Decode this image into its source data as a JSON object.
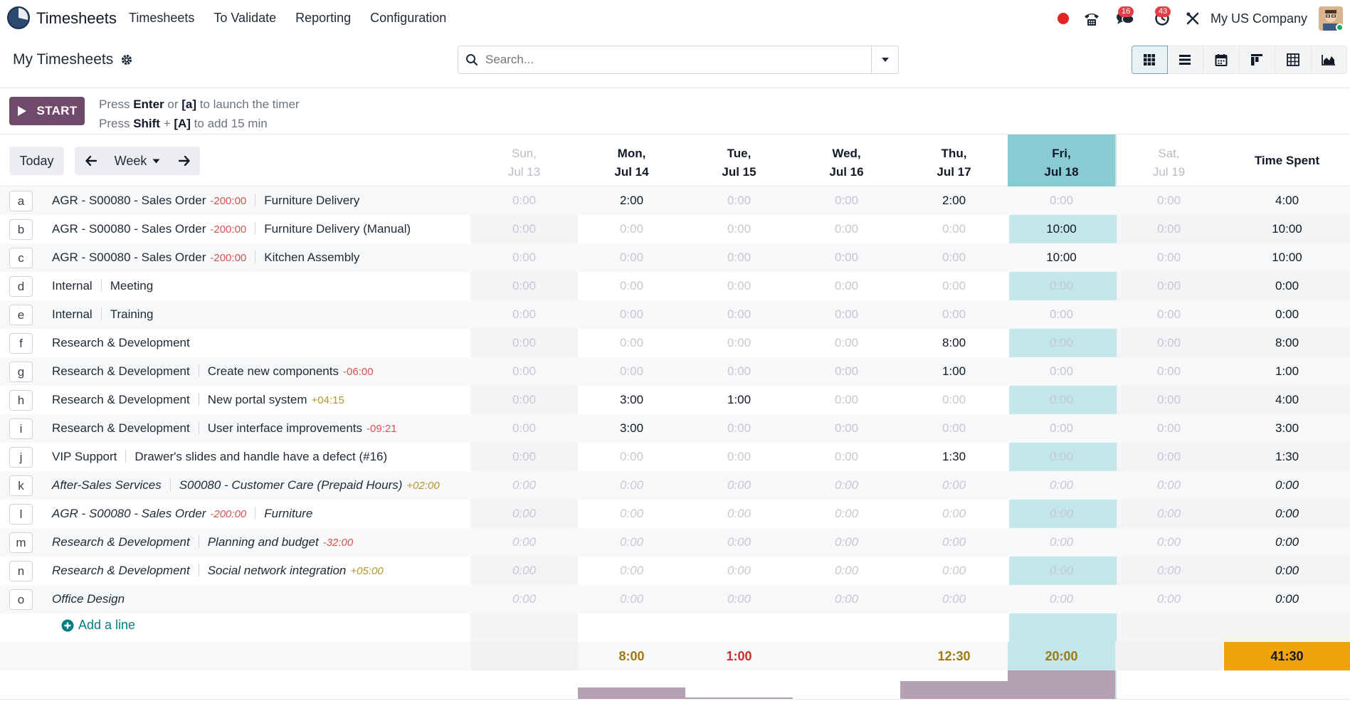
{
  "app": {
    "name": "Timesheets"
  },
  "menu": [
    {
      "label": "Timesheets"
    },
    {
      "label": "To Validate"
    },
    {
      "label": "Reporting"
    },
    {
      "label": "Configuration"
    }
  ],
  "systray": {
    "messages_count": "16",
    "activities_count": "43",
    "company": "My US Company"
  },
  "control": {
    "title": "My Timesheets",
    "search_placeholder": "Search..."
  },
  "timer": {
    "start_label": "START",
    "help1": {
      "a": "Press ",
      "b": "Enter",
      "c": " or ",
      "d": "[a]",
      "e": " to launch the timer"
    },
    "help2": {
      "a": "Press ",
      "b": "Shift",
      "c": " + ",
      "d": "[A]",
      "e": " to add 15 min"
    }
  },
  "grid_nav": {
    "today": "Today",
    "range": "Week"
  },
  "days": [
    {
      "line1": "Sun,",
      "line2": "Jul 13"
    },
    {
      "line1": "Mon,",
      "line2": "Jul 14"
    },
    {
      "line1": "Tue,",
      "line2": "Jul 15"
    },
    {
      "line1": "Wed,",
      "line2": "Jul 16"
    },
    {
      "line1": "Thu,",
      "line2": "Jul 17"
    },
    {
      "line1": "Fri,",
      "line2": "Jul 18"
    },
    {
      "line1": "Sat,",
      "line2": "Jul 19"
    }
  ],
  "time_spent_label": "Time Spent",
  "rows": [
    {
      "key": "a",
      "project": "AGR - S00080 - Sales Order",
      "project_delta": "-200:00",
      "task": "Furniture Delivery",
      "task_delta": "",
      "italic": false,
      "values": [
        "0:00",
        "2:00",
        "0:00",
        "0:00",
        "2:00",
        "0:00",
        "0:00"
      ],
      "total": "4:00"
    },
    {
      "key": "b",
      "project": "AGR - S00080 - Sales Order",
      "project_delta": "-200:00",
      "task": "Furniture Delivery (Manual)",
      "task_delta": "",
      "italic": false,
      "values": [
        "0:00",
        "0:00",
        "0:00",
        "0:00",
        "0:00",
        "10:00",
        "0:00"
      ],
      "total": "10:00"
    },
    {
      "key": "c",
      "project": "AGR - S00080 - Sales Order",
      "project_delta": "-200:00",
      "task": "Kitchen Assembly",
      "task_delta": "",
      "italic": false,
      "values": [
        "0:00",
        "0:00",
        "0:00",
        "0:00",
        "0:00",
        "10:00",
        "0:00"
      ],
      "total": "10:00"
    },
    {
      "key": "d",
      "project": "Internal",
      "project_delta": "",
      "task": "Meeting",
      "task_delta": "",
      "italic": false,
      "values": [
        "0:00",
        "0:00",
        "0:00",
        "0:00",
        "0:00",
        "0:00",
        "0:00"
      ],
      "total": "0:00"
    },
    {
      "key": "e",
      "project": "Internal",
      "project_delta": "",
      "task": "Training",
      "task_delta": "",
      "italic": false,
      "values": [
        "0:00",
        "0:00",
        "0:00",
        "0:00",
        "0:00",
        "0:00",
        "0:00"
      ],
      "total": "0:00"
    },
    {
      "key": "f",
      "project": "Research & Development",
      "project_delta": "",
      "task": "",
      "task_delta": "",
      "italic": false,
      "values": [
        "0:00",
        "0:00",
        "0:00",
        "0:00",
        "8:00",
        "0:00",
        "0:00"
      ],
      "total": "8:00"
    },
    {
      "key": "g",
      "project": "Research & Development",
      "project_delta": "",
      "task": "Create new components",
      "task_delta": "-06:00",
      "italic": false,
      "values": [
        "0:00",
        "0:00",
        "0:00",
        "0:00",
        "1:00",
        "0:00",
        "0:00"
      ],
      "total": "1:00"
    },
    {
      "key": "h",
      "project": "Research & Development",
      "project_delta": "",
      "task": "New portal system",
      "task_delta": "+04:15",
      "italic": false,
      "values": [
        "0:00",
        "3:00",
        "1:00",
        "0:00",
        "0:00",
        "0:00",
        "0:00"
      ],
      "total": "4:00"
    },
    {
      "key": "i",
      "project": "Research & Development",
      "project_delta": "",
      "task": "User interface improvements",
      "task_delta": "-09:21",
      "italic": false,
      "values": [
        "0:00",
        "3:00",
        "0:00",
        "0:00",
        "0:00",
        "0:00",
        "0:00"
      ],
      "total": "3:00"
    },
    {
      "key": "j",
      "project": "VIP Support",
      "project_delta": "",
      "task": "Drawer's slides and handle have a defect (#16)",
      "task_delta": "",
      "italic": false,
      "values": [
        "0:00",
        "0:00",
        "0:00",
        "0:00",
        "1:30",
        "0:00",
        "0:00"
      ],
      "total": "1:30"
    },
    {
      "key": "k",
      "project": "After-Sales Services",
      "project_delta": "",
      "task": "S00080 - Customer Care (Prepaid Hours)",
      "task_delta": "+02:00",
      "italic": true,
      "values": [
        "0:00",
        "0:00",
        "0:00",
        "0:00",
        "0:00",
        "0:00",
        "0:00"
      ],
      "total": "0:00"
    },
    {
      "key": "l",
      "project": "AGR - S00080 - Sales Order",
      "project_delta": "-200:00",
      "task": "Furniture",
      "task_delta": "",
      "italic": true,
      "values": [
        "0:00",
        "0:00",
        "0:00",
        "0:00",
        "0:00",
        "0:00",
        "0:00"
      ],
      "total": "0:00"
    },
    {
      "key": "m",
      "project": "Research & Development",
      "project_delta": "",
      "task": "Planning and budget",
      "task_delta": "-32:00",
      "italic": true,
      "values": [
        "0:00",
        "0:00",
        "0:00",
        "0:00",
        "0:00",
        "0:00",
        "0:00"
      ],
      "total": "0:00"
    },
    {
      "key": "n",
      "project": "Research & Development",
      "project_delta": "",
      "task": "Social network integration",
      "task_delta": "+05:00",
      "italic": true,
      "values": [
        "0:00",
        "0:00",
        "0:00",
        "0:00",
        "0:00",
        "0:00",
        "0:00"
      ],
      "total": "0:00"
    },
    {
      "key": "o",
      "project": "Office Design",
      "project_delta": "",
      "task": "",
      "task_delta": "",
      "italic": true,
      "values": [
        "0:00",
        "0:00",
        "0:00",
        "0:00",
        "0:00",
        "0:00",
        "0:00"
      ],
      "total": "0:00"
    }
  ],
  "add_line_label": "Add a line",
  "daily_totals": [
    {
      "value": "",
      "color": "#000000",
      "hours": 0
    },
    {
      "value": "8:00",
      "color": "#a07a10",
      "hours": 8
    },
    {
      "value": "1:00",
      "color": "#c9302c",
      "hours": 1
    },
    {
      "value": "",
      "color": "#000000",
      "hours": 0
    },
    {
      "value": "12:30",
      "color": "#a07a10",
      "hours": 12.5
    },
    {
      "value": "20:00",
      "color": "#a07a10",
      "hours": 20
    },
    {
      "value": "",
      "color": "#000000",
      "hours": 0
    }
  ],
  "grand_total": "41:30",
  "colors": {
    "primary": "#71496b",
    "accent": "#017e84",
    "today": "#89cad3",
    "grand_total": "#f0a30a"
  }
}
